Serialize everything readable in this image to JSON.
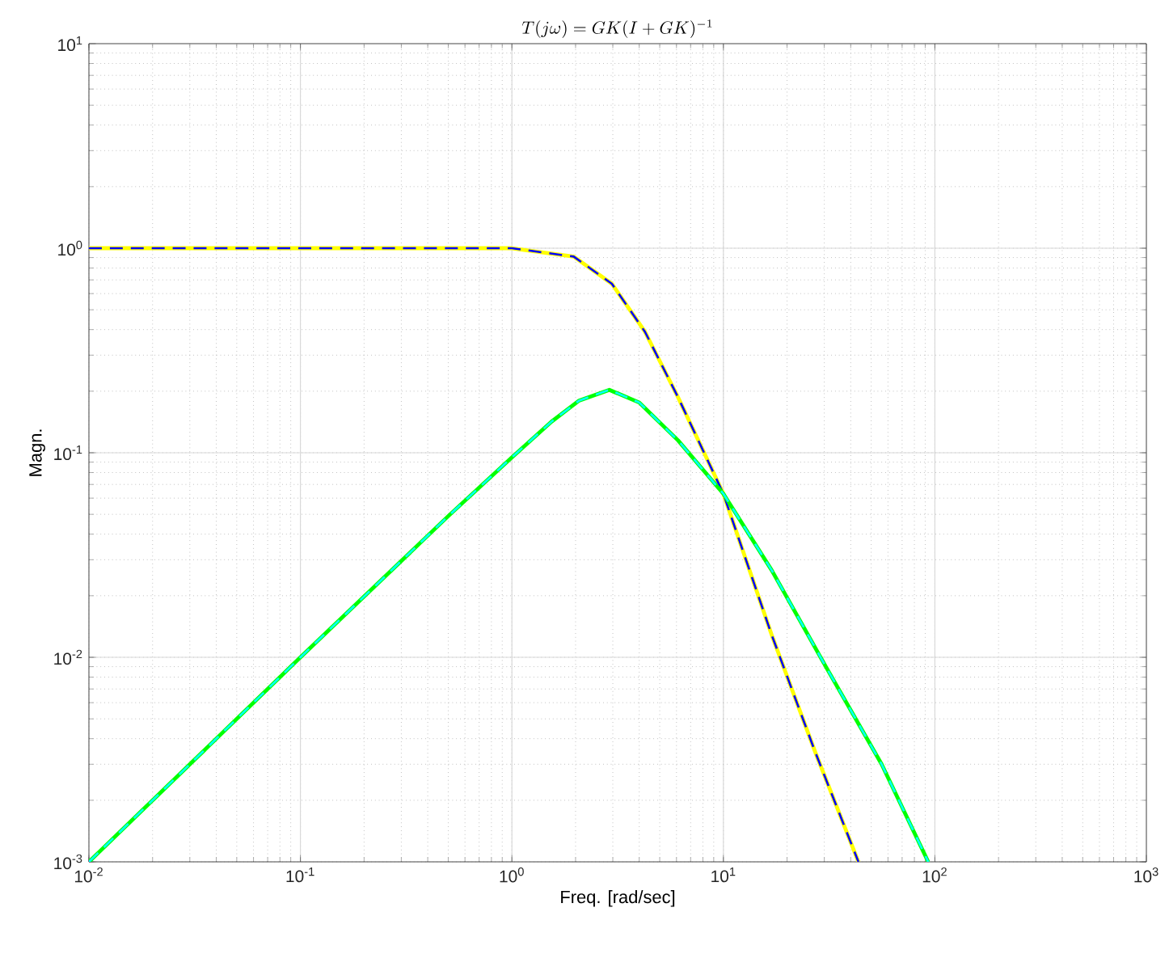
{
  "chart_data": {
    "type": "line",
    "title": "T(j\\omega) = GK(I+GK)^{-1}",
    "xlabel": "Freq. [rad/sec]",
    "ylabel": "Magn.",
    "log": "xy",
    "grid": true,
    "xlim": [
      0.01,
      1000
    ],
    "ylim": [
      0.001,
      10
    ],
    "xticks": [
      {
        "value": 0.01,
        "label": "10$^{-2}$"
      },
      {
        "value": 0.1,
        "label": "10$^{-1}$"
      },
      {
        "value": 1,
        "label": "10$^{0}$"
      },
      {
        "value": 10,
        "label": "10$^{1}$"
      },
      {
        "value": 100,
        "label": "10$^{2}$"
      },
      {
        "value": 1000,
        "label": "10$^{3}$"
      }
    ],
    "yticks": [
      {
        "value": 0.001,
        "label": "10$^{-3}$"
      },
      {
        "value": 0.01,
        "label": "10$^{-2}$"
      },
      {
        "value": 0.1,
        "label": "10$^{-1}$"
      },
      {
        "value": 1,
        "label": "10$^{0}$"
      },
      {
        "value": 10,
        "label": "10$^{1}$"
      }
    ],
    "series": [
      {
        "color": "#ffff00",
        "line_style": "solid",
        "x": [
          0.01,
          0.1,
          0.5,
          1,
          1.96,
          2.97,
          4.26,
          6.1,
          10,
          16.9,
          27.3,
          43.5
        ],
        "values": [
          1.0,
          1.0,
          1.0,
          1.0,
          0.91,
          0.67,
          0.39,
          0.187,
          0.063,
          0.0129,
          0.0034,
          0.001
        ]
      },
      {
        "color": "#0000ff",
        "line_style": "dashed",
        "x": [
          0.01,
          0.1,
          0.5,
          1,
          1.96,
          2.97,
          4.26,
          6.1,
          10,
          16.9,
          27.3,
          43.5
        ],
        "values": [
          1.0,
          1.0,
          1.0,
          1.0,
          0.91,
          0.67,
          0.39,
          0.187,
          0.063,
          0.0129,
          0.0034,
          0.001
        ]
      },
      {
        "color": "#00ff00",
        "line_style": "solid",
        "x": [
          0.01,
          0.1,
          0.5,
          1,
          1.54,
          2.08,
          2.89,
          4.0,
          6.1,
          10,
          16.9,
          30.7,
          56,
          93
        ],
        "values": [
          0.001,
          0.01,
          0.049,
          0.095,
          0.142,
          0.18,
          0.203,
          0.176,
          0.115,
          0.063,
          0.0267,
          0.0089,
          0.003,
          0.001
        ]
      },
      {
        "color": "#00ffff",
        "line_style": "dashed",
        "x": [
          0.01,
          0.1,
          0.5,
          1,
          1.54,
          2.08,
          2.89,
          4.0,
          6.1,
          10,
          16.9,
          30.7,
          56,
          93
        ],
        "values": [
          0.001,
          0.01,
          0.049,
          0.095,
          0.142,
          0.18,
          0.203,
          0.176,
          0.115,
          0.063,
          0.0267,
          0.0089,
          0.003,
          0.001
        ]
      }
    ]
  }
}
